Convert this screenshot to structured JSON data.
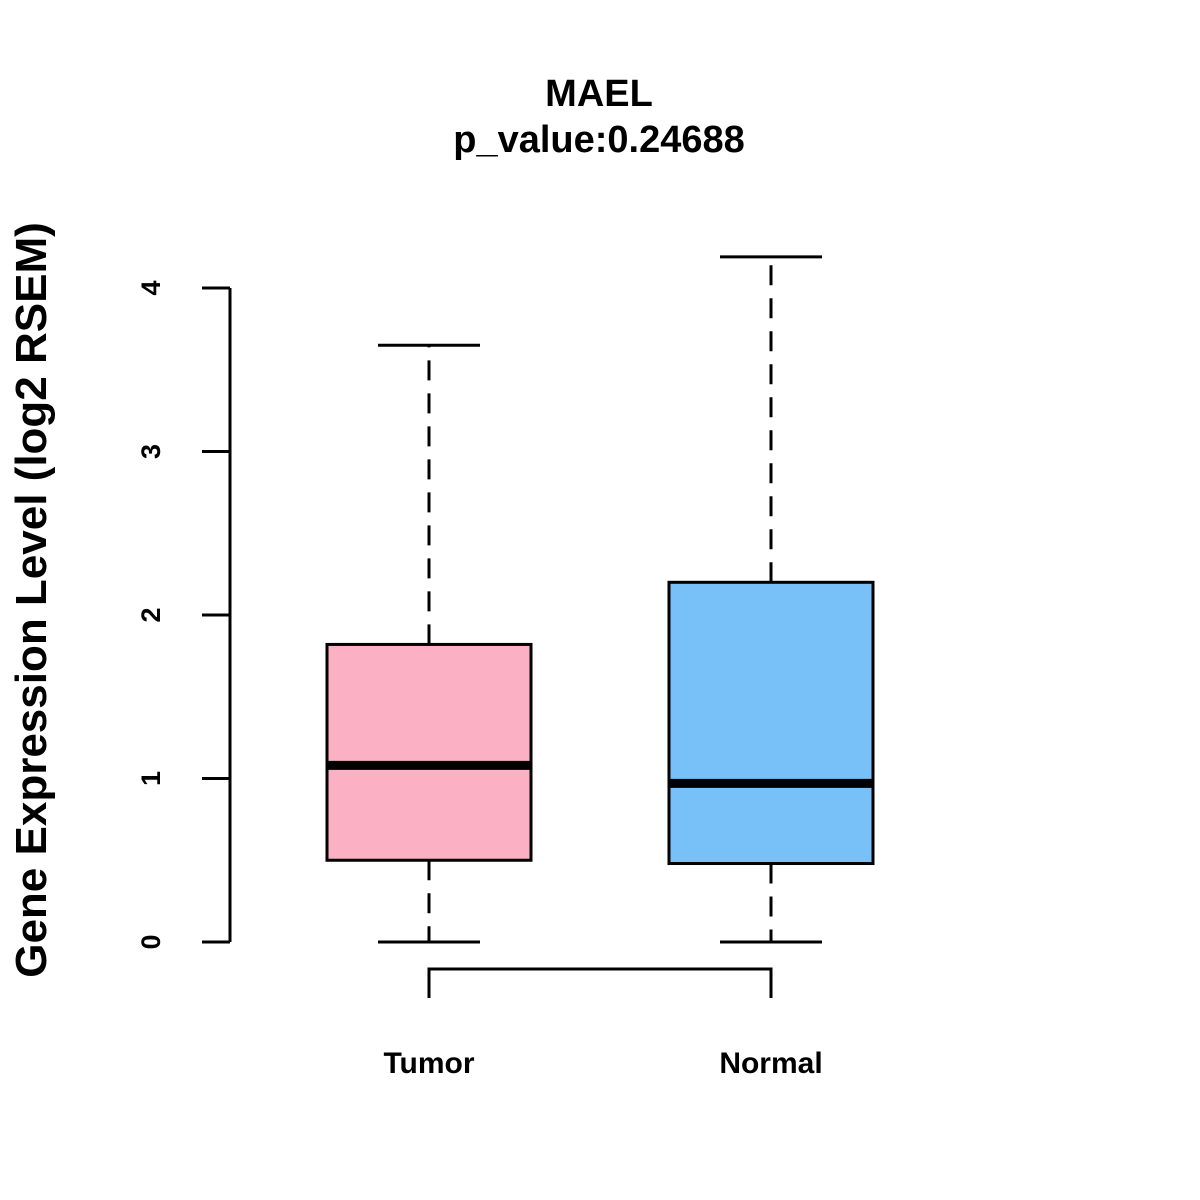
{
  "chart_data": {
    "type": "box",
    "title": "MAEL",
    "subtitle": "p_value:0.24688",
    "xlabel": "",
    "ylabel": "Gene Expression Level (log2 RSEM)",
    "ylim": [
      0,
      4.2
    ],
    "yticks": [
      0,
      1,
      2,
      3,
      4
    ],
    "categories": [
      "Tumor",
      "Normal"
    ],
    "series": [
      {
        "name": "Tumor",
        "color": "#FBB1C3",
        "min": 0.0,
        "q1": 0.5,
        "median": 1.08,
        "q3": 1.82,
        "max": 3.65
      },
      {
        "name": "Normal",
        "color": "#77C1F8",
        "min": 0.0,
        "q1": 0.48,
        "median": 0.97,
        "q3": 2.2,
        "max": 4.19
      }
    ],
    "comparison": {
      "from": "Tumor",
      "to": "Normal"
    },
    "grid": false,
    "legend": "none"
  }
}
